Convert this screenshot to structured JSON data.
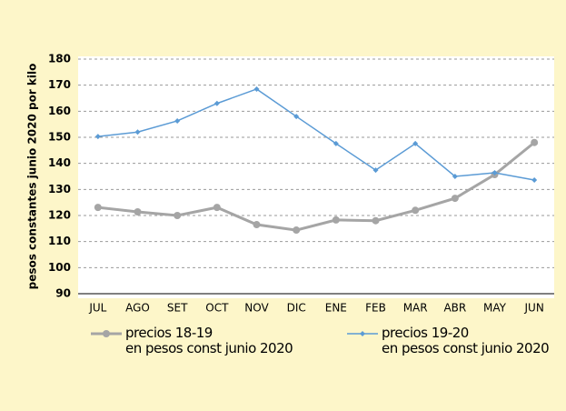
{
  "chart_data": {
    "type": "line",
    "y_label": "pesos constantes  junio 2020 por kilo",
    "categories": [
      "JUL",
      "AGO",
      "SET",
      "OCT",
      "NOV",
      "DIC",
      "ENE",
      "FEB",
      "MAR",
      "ABR",
      "MAY",
      "JUN"
    ],
    "series": [
      {
        "name": "precios 18-19\nen pesos const junio 2020",
        "color": "#a5a5a5",
        "values": [
          123.1,
          121.4,
          120,
          123.1,
          116.5,
          114.4,
          118.3,
          118,
          122,
          126.6,
          135.7,
          148
        ]
      },
      {
        "name": "precios 19-20\nen pesos const junio 2020",
        "color": "#5b9bd5",
        "values": [
          150.3,
          152,
          156.3,
          163,
          168.5,
          158,
          147.6,
          137.4,
          147.6,
          135,
          136.4,
          133.6
        ]
      }
    ],
    "ylim": [
      90,
      180
    ],
    "yticks": [
      90,
      100,
      110,
      120,
      130,
      140,
      150,
      160,
      170,
      180
    ],
    "grid": true
  }
}
